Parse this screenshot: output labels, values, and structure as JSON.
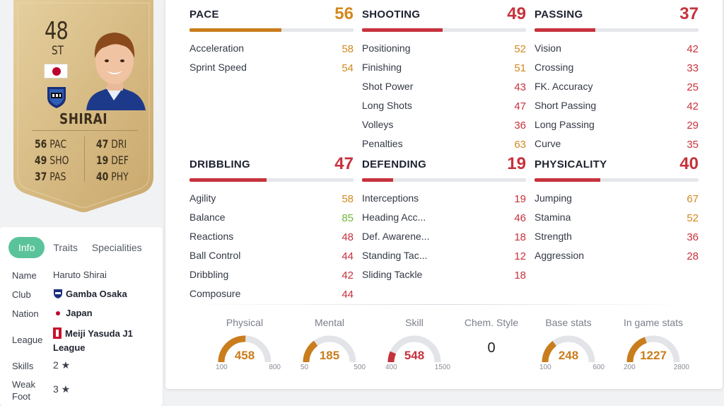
{
  "card": {
    "rating": "48",
    "position": "ST",
    "name": "SHIRAI",
    "stats": [
      {
        "value": "56",
        "abbr": "PAC"
      },
      {
        "value": "49",
        "abbr": "SHO"
      },
      {
        "value": "37",
        "abbr": "PAS"
      },
      {
        "value": "47",
        "abbr": "DRI"
      },
      {
        "value": "19",
        "abbr": "DEF"
      },
      {
        "value": "40",
        "abbr": "PHY"
      }
    ]
  },
  "info": {
    "tabs": [
      "Info",
      "Traits",
      "Specialities"
    ],
    "rows": {
      "name": {
        "label": "Name",
        "value": "Haruto Shirai"
      },
      "club": {
        "label": "Club",
        "value": "Gamba Osaka"
      },
      "nation": {
        "label": "Nation",
        "value": "Japan"
      },
      "league": {
        "label": "League",
        "value1": "Meiji Yasuda J1",
        "value2": "League"
      },
      "skills": {
        "label": "Skills",
        "value": "2 ★"
      },
      "weak_foot": {
        "label1": "Weak",
        "label2": "Foot",
        "value": "3 ★"
      }
    }
  },
  "colors": {
    "orange": "#d2891f",
    "red": "#c6323c",
    "green": "#72b83a",
    "teal": "#5bc39a",
    "bar_orange": "#c97d1c",
    "bar_red": "#c6323c"
  },
  "categories": {
    "pace": {
      "title": "PACE",
      "value": "56",
      "fill": 0.56,
      "color": "orange",
      "stats": [
        {
          "name": "Acceleration",
          "value": "58",
          "color": "orange"
        },
        {
          "name": "Sprint Speed",
          "value": "54",
          "color": "orange"
        }
      ]
    },
    "shooting": {
      "title": "SHOOTING",
      "value": "49",
      "fill": 0.49,
      "color": "red",
      "stats": [
        {
          "name": "Positioning",
          "value": "52",
          "color": "orange"
        },
        {
          "name": "Finishing",
          "value": "51",
          "color": "orange"
        },
        {
          "name": "Shot Power",
          "value": "43",
          "color": "red"
        },
        {
          "name": "Long Shots",
          "value": "47",
          "color": "red"
        },
        {
          "name": "Volleys",
          "value": "36",
          "color": "red"
        },
        {
          "name": "Penalties",
          "value": "63",
          "color": "orange"
        }
      ]
    },
    "passing": {
      "title": "PASSING",
      "value": "37",
      "fill": 0.37,
      "color": "red",
      "stats": [
        {
          "name": "Vision",
          "value": "42",
          "color": "red"
        },
        {
          "name": "Crossing",
          "value": "33",
          "color": "red"
        },
        {
          "name": "FK. Accuracy",
          "value": "25",
          "color": "red"
        },
        {
          "name": "Short Passing",
          "value": "42",
          "color": "red"
        },
        {
          "name": "Long Passing",
          "value": "29",
          "color": "red"
        },
        {
          "name": "Curve",
          "value": "35",
          "color": "red"
        }
      ]
    },
    "dribbling": {
      "title": "DRIBBLING",
      "value": "47",
      "fill": 0.47,
      "color": "red",
      "stats": [
        {
          "name": "Agility",
          "value": "58",
          "color": "orange"
        },
        {
          "name": "Balance",
          "value": "85",
          "color": "green"
        },
        {
          "name": "Reactions",
          "value": "48",
          "color": "red"
        },
        {
          "name": "Ball Control",
          "value": "44",
          "color": "red"
        },
        {
          "name": "Dribbling",
          "value": "42",
          "color": "red"
        },
        {
          "name": "Composure",
          "value": "44",
          "color": "red"
        }
      ]
    },
    "defending": {
      "title": "DEFENDING",
      "value": "19",
      "fill": 0.19,
      "color": "red",
      "stats": [
        {
          "name": "Interceptions",
          "value": "19",
          "color": "red"
        },
        {
          "name": "Heading Acc...",
          "value": "46",
          "color": "red"
        },
        {
          "name": "Def. Awarene...",
          "value": "18",
          "color": "red"
        },
        {
          "name": "Standing Tac...",
          "value": "12",
          "color": "red"
        },
        {
          "name": "Sliding Tackle",
          "value": "18",
          "color": "red"
        }
      ]
    },
    "physicality": {
      "title": "PHYSICALITY",
      "value": "40",
      "fill": 0.4,
      "color": "red",
      "stats": [
        {
          "name": "Jumping",
          "value": "67",
          "color": "orange"
        },
        {
          "name": "Stamina",
          "value": "52",
          "color": "orange"
        },
        {
          "name": "Strength",
          "value": "36",
          "color": "red"
        },
        {
          "name": "Aggression",
          "value": "28",
          "color": "red"
        }
      ]
    }
  },
  "gauges": [
    {
      "label": "Physical",
      "value": "458",
      "min": "100",
      "max": "800",
      "color": "orange"
    },
    {
      "label": "Mental",
      "value": "185",
      "min": "50",
      "max": "500",
      "color": "orange"
    },
    {
      "label": "Skill",
      "value": "548",
      "min": "400",
      "max": "1500",
      "color": "red"
    },
    {
      "label": "Base stats",
      "value": "248",
      "min": "100",
      "max": "600",
      "color": "orange"
    },
    {
      "label": "In game stats",
      "value": "1227",
      "min": "200",
      "max": "2800",
      "color": "orange"
    }
  ],
  "chem_style": {
    "label": "Chem. Style",
    "value": "0"
  }
}
